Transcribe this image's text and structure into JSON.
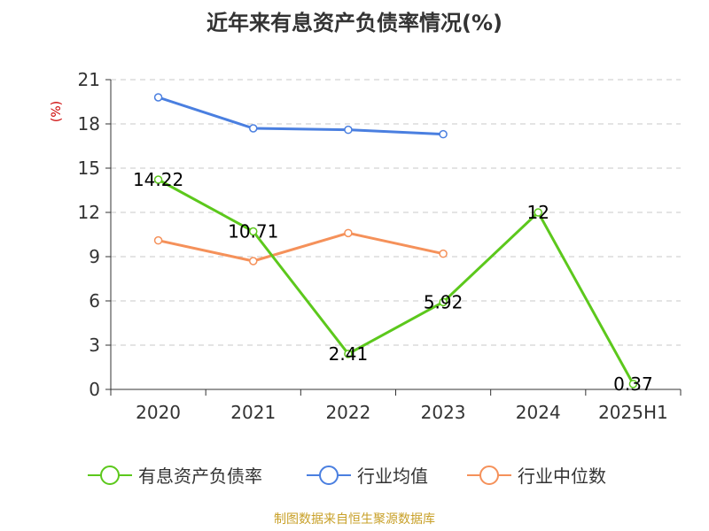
{
  "chart_data": {
    "type": "line",
    "title": "近年来有息资产负债率情况(%)",
    "ylabel": "(%)",
    "categories": [
      "2020",
      "2021",
      "2022",
      "2023",
      "2024",
      "2025H1"
    ],
    "ylim": [
      0,
      21
    ],
    "yticks": [
      0,
      3,
      6,
      9,
      12,
      15,
      18,
      21
    ],
    "grid": true,
    "legend_position": "bottom",
    "series": [
      {
        "name": "有息资产负债率",
        "color": "#5cc81c",
        "values": [
          14.22,
          10.71,
          2.41,
          5.92,
          12,
          0.37
        ],
        "labels": [
          "14.22",
          "10.71",
          "2.41",
          "5.92",
          "12",
          "0.37"
        ],
        "show_labels": true
      },
      {
        "name": "行业均值",
        "color": "#4a7fe0",
        "values": [
          19.8,
          17.7,
          17.6,
          17.3,
          null,
          null
        ],
        "show_labels": false
      },
      {
        "name": "行业中位数",
        "color": "#f5915a",
        "values": [
          10.1,
          8.7,
          10.6,
          9.2,
          null,
          null
        ],
        "show_labels": false
      }
    ]
  },
  "source": "制图数据来自恒生聚源数据库"
}
